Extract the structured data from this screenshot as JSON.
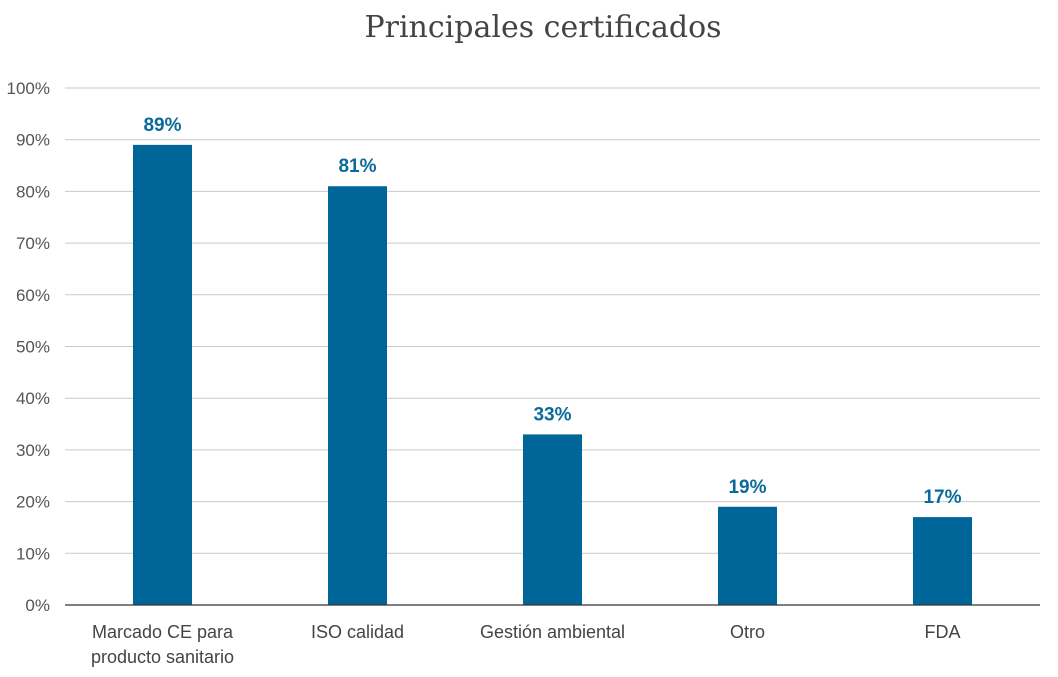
{
  "chart_data": {
    "type": "bar",
    "title": "Principales certificados",
    "categories": [
      [
        "Marcado CE para",
        "producto sanitario"
      ],
      [
        "ISO calidad"
      ],
      [
        "Gestión ambiental"
      ],
      [
        "Otro"
      ],
      [
        "FDA"
      ]
    ],
    "values": [
      89,
      81,
      33,
      19,
      17
    ],
    "data_labels": [
      "89%",
      "81%",
      "33%",
      "19%",
      "17%"
    ],
    "ylim": [
      0,
      100
    ],
    "yticks": [
      0,
      10,
      20,
      30,
      40,
      50,
      60,
      70,
      80,
      90,
      100
    ],
    "ytick_labels": [
      "0%",
      "10%",
      "20%",
      "30%",
      "40%",
      "50%",
      "60%",
      "70%",
      "80%",
      "90%",
      "100%"
    ],
    "grid": true,
    "bar_color": "#006699",
    "label_color": "#0a6a9a"
  }
}
